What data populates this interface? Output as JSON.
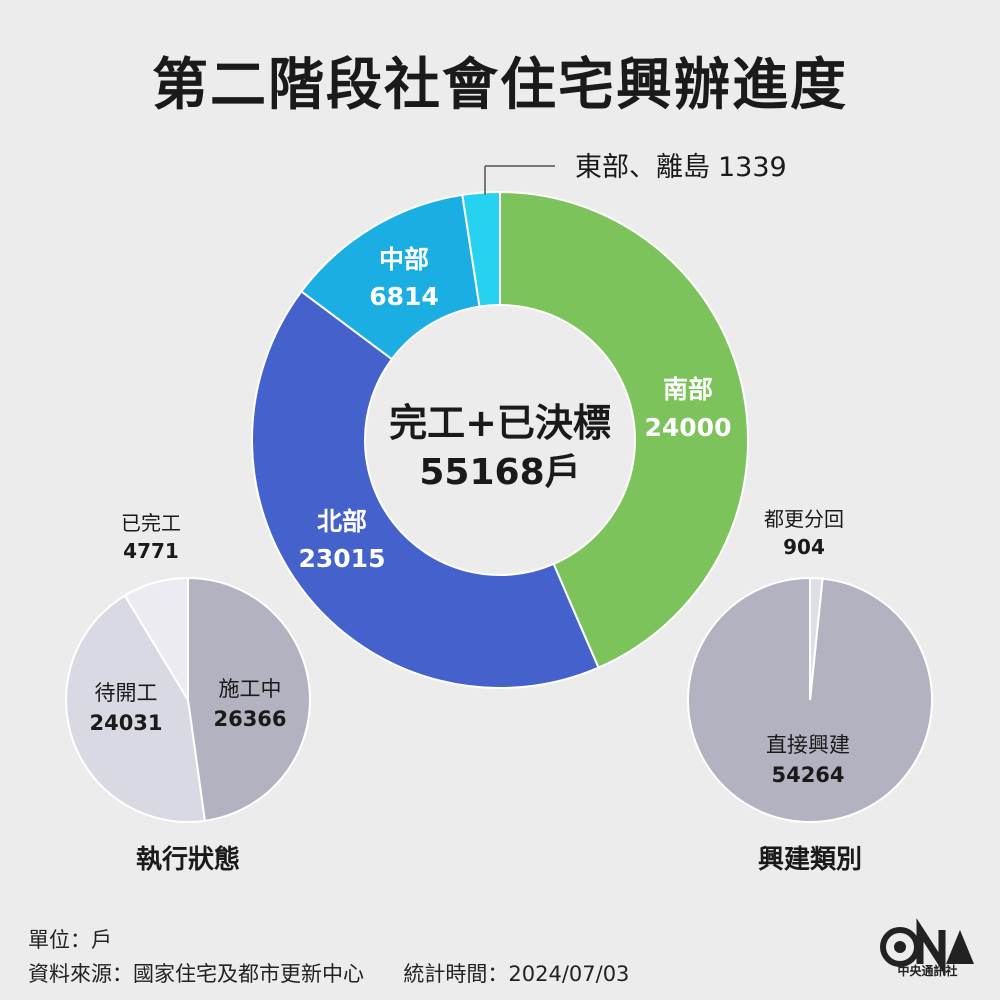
{
  "title": "第二階段社會住宅興辦進度",
  "chart_data": [
    {
      "type": "pie",
      "name": "region",
      "center_label": "完工+已決標",
      "center_value": "55168戶",
      "slices": [
        {
          "label": "南部",
          "value": 24000,
          "color": "#7dc35b"
        },
        {
          "label": "北部",
          "value": 23015,
          "color": "#4561cc"
        },
        {
          "label": "中部",
          "value": 6814,
          "color": "#1aaee2"
        },
        {
          "label": "東部、離島",
          "value": 1339,
          "color": "#26d2ef"
        }
      ]
    },
    {
      "type": "pie",
      "name": "status",
      "title": "執行狀態",
      "slices": [
        {
          "label": "施工中",
          "value": 26366,
          "color": "#b3b2c0"
        },
        {
          "label": "待開工",
          "value": 24031,
          "color": "#d9d9e3"
        },
        {
          "label": "已完工",
          "value": 4771,
          "color": "#ebebf1"
        }
      ]
    },
    {
      "type": "pie",
      "name": "build_type",
      "title": "興建類別",
      "slices": [
        {
          "label": "直接興建",
          "value": 54264,
          "color": "#b3b2c0"
        },
        {
          "label": "都更分回",
          "value": 904,
          "color": "#dedee8"
        }
      ]
    }
  ],
  "footer": {
    "unit": "單位：戶",
    "source": "資料來源：國家住宅及都市更新中心",
    "time": "統計時間：2024/07/03"
  },
  "logo": {
    "text": "中央通訊社"
  }
}
